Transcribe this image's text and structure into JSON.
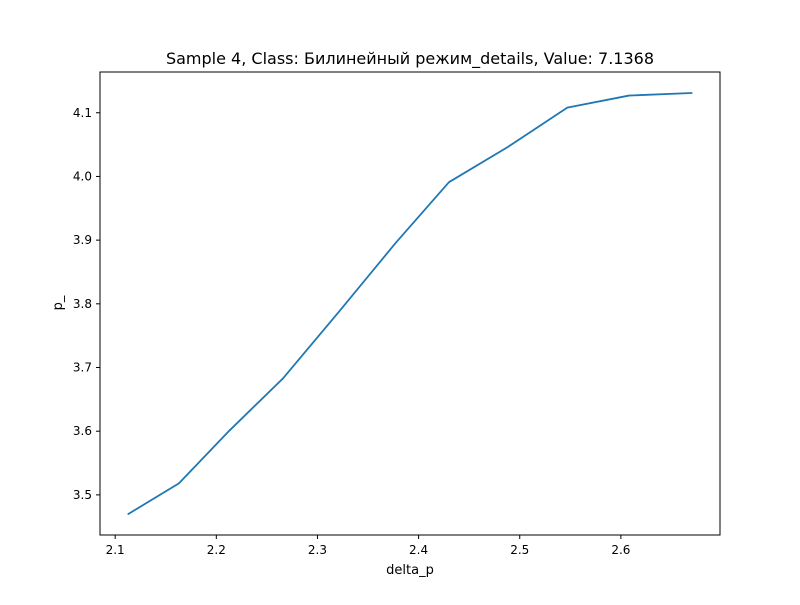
{
  "chart_data": {
    "type": "line",
    "title": "Sample 4, Class: Билинейный режим_details, Value: 7.1368",
    "xlabel": "delta_p",
    "ylabel": "p_",
    "xlim": [
      2.085,
      2.698
    ],
    "ylim": [
      3.437,
      4.164
    ],
    "x_ticks": [
      2.1,
      2.2,
      2.3,
      2.4,
      2.5,
      2.6
    ],
    "x_tick_labels": [
      "2.1",
      "2.2",
      "2.3",
      "2.4",
      "2.5",
      "2.6"
    ],
    "y_ticks": [
      3.5,
      3.6,
      3.7,
      3.8,
      3.9,
      4.0,
      4.1
    ],
    "y_tick_labels": [
      "3.5",
      "3.6",
      "3.7",
      "3.8",
      "3.9",
      "4.0",
      "4.1"
    ],
    "grid": false,
    "series": [
      {
        "color": "#1f77b4",
        "x": [
          2.113,
          2.163,
          2.213,
          2.266,
          2.322,
          2.377,
          2.43,
          2.488,
          2.547,
          2.608,
          2.67
        ],
        "y": [
          3.47,
          3.518,
          3.601,
          3.683,
          3.789,
          3.895,
          3.991,
          4.046,
          4.108,
          4.127,
          4.131
        ]
      }
    ]
  }
}
